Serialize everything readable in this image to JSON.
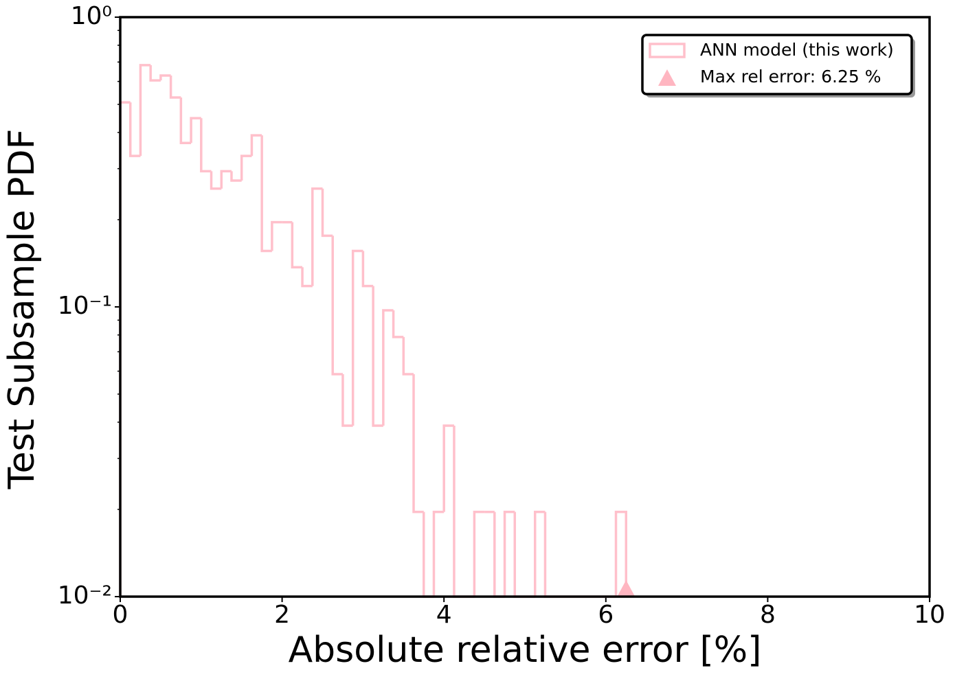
{
  "chart_data": {
    "type": "histogram",
    "xlabel": "Absolute relative error [%]",
    "ylabel": "Test Subsample PDF",
    "bins": [
      0,
      0.125,
      0.25,
      0.375,
      0.5,
      0.625,
      0.75,
      0.875,
      1,
      1.125,
      1.25,
      1.375,
      1.5,
      1.625,
      1.75,
      1.875,
      2,
      2.125,
      2.25,
      2.375,
      2.5,
      2.625,
      2.75,
      2.875,
      3,
      3.125,
      3.25,
      3.375,
      3.5,
      3.625,
      3.75,
      3.875,
      4,
      4.125,
      4.25,
      4.375,
      4.5,
      4.625,
      4.75,
      4.875,
      5,
      5.125,
      5.25,
      5.375,
      5.5,
      5.625,
      5.75,
      5.875,
      6,
      6.125,
      6.25
    ],
    "series": [
      {
        "name": "ANN model (this work)",
        "color": "#ffc0cb",
        "values": [
          0.508,
          0.332,
          0.683,
          0.605,
          0.629,
          0.528,
          0.368,
          0.448,
          0.294,
          0.256,
          0.294,
          0.273,
          0.332,
          0.391,
          0.156,
          0.196,
          0.196,
          0.137,
          0.118,
          0.256,
          0.176,
          0.0586,
          0.0389,
          0.156,
          0.118,
          0.0389,
          0.0973,
          0.0787,
          0.0586,
          0.0196,
          0,
          0.0196,
          0.0389,
          0,
          0,
          0.0196,
          0.0196,
          0,
          0.0196,
          0,
          0,
          0.0196,
          0,
          0,
          0,
          0,
          0,
          0,
          0,
          0.0196
        ]
      }
    ],
    "marker": {
      "name": "Max rel error: 6.25 %",
      "x": 6.25,
      "y": 0.01,
      "color": "#ffb6c1"
    },
    "xlim": [
      0,
      10
    ],
    "xticks": [
      0,
      2,
      4,
      6,
      8,
      10
    ],
    "ylim": [
      0.01,
      1
    ],
    "log_y": true,
    "yticks": [
      {
        "value": 1,
        "label": "10⁰"
      },
      {
        "value": 0.1,
        "label": "10⁻¹"
      },
      {
        "value": 0.01,
        "label": "10⁻²"
      }
    ],
    "yminorticks": [
      0.02,
      0.03,
      0.04,
      0.05,
      0.06,
      0.07,
      0.08,
      0.09,
      0.2,
      0.3,
      0.4,
      0.5,
      0.6,
      0.7,
      0.8,
      0.9
    ],
    "legend": "upper right"
  }
}
